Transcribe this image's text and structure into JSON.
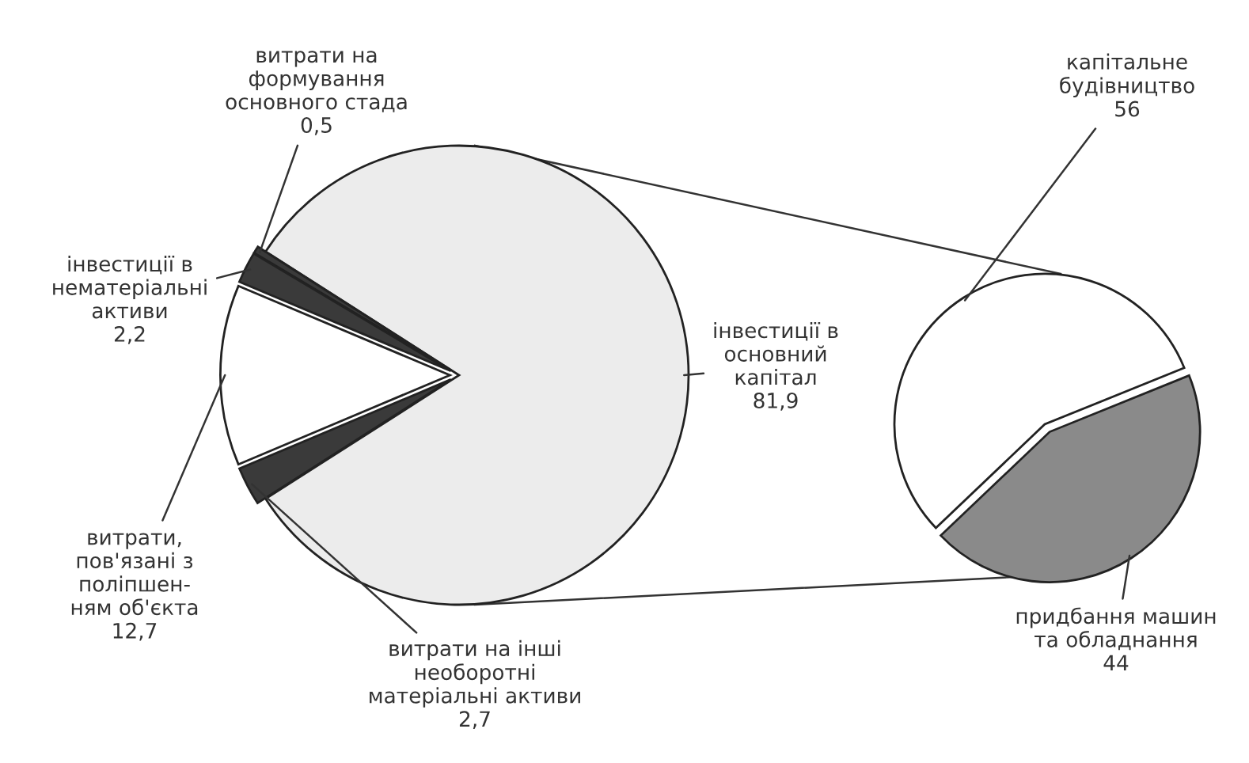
{
  "chart_data": [
    {
      "type": "pie",
      "categories": [
        "інвестиції в\nосновний\nкапітал",
        "витрати на\nформування\nосновного стада",
        "інвестиції в\nнематеріальні\nактиви",
        "витрати,\nпов'язані з\nполіпшен-\nням об'єкта",
        "витрати на інші\nнеоборотні\nматеріальні активи"
      ],
      "values": [
        81.9,
        0.5,
        2.2,
        12.7,
        2.7
      ],
      "colors": [
        "#ececec",
        "#3a3a3a",
        "#3a3a3a",
        "#ffffff",
        "#3a3a3a"
      ],
      "value_labels": [
        "81,9",
        "0,5",
        "2,2",
        "12,7",
        "2,7"
      ]
    },
    {
      "type": "pie",
      "categories": [
        "капітальне\nбудівництво",
        "придбання машин\nта обладнання"
      ],
      "values": [
        56,
        44
      ],
      "colors": [
        "#ffffff",
        "#8a8a8a"
      ],
      "value_labels": [
        "56",
        "44"
      ]
    }
  ]
}
